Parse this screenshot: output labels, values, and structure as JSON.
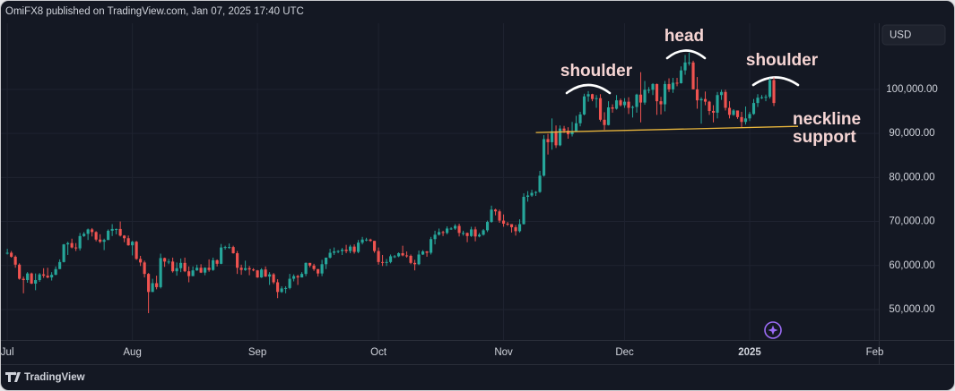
{
  "header": {
    "text": "OmiFX8 published on TradingView.com, Jan 07, 2025 17:40 UTC"
  },
  "footer": {
    "brand": "TradingView"
  },
  "currency_button": "USD",
  "chart_data": {
    "type": "candlestick",
    "up_color": "#26a69a",
    "down_color": "#ef5350",
    "grid": true,
    "xlim": [
      -0.7,
      216
    ],
    "xticks": [
      {
        "value": 0,
        "label": "Jul"
      },
      {
        "value": 31,
        "label": "Aug"
      },
      {
        "value": 62,
        "label": "Sep"
      },
      {
        "value": 92,
        "label": "Oct"
      },
      {
        "value": 123,
        "label": "Nov"
      },
      {
        "value": 153,
        "label": "Dec"
      },
      {
        "value": 184,
        "label": "2025",
        "bold": true
      },
      {
        "value": 215,
        "label": "Feb"
      }
    ],
    "ylim": [
      43100,
      115200
    ],
    "yticks": [
      {
        "value": 50000,
        "label": "50,000.00"
      },
      {
        "value": 60000,
        "label": "60,000.00"
      },
      {
        "value": 70000,
        "label": "70,000.00"
      },
      {
        "value": 80000,
        "label": "80,000.00"
      },
      {
        "value": 90000,
        "label": "90,000.00"
      },
      {
        "value": 100000,
        "label": "100,000.00"
      }
    ],
    "series": {
      "open": [
        62700,
        62900,
        62000,
        60200,
        57000,
        56700,
        58200,
        55900,
        56700,
        58000,
        57700,
        57300,
        57900,
        59200,
        60800,
        64800,
        65100,
        64100,
        63900,
        66700,
        67200,
        68200,
        67600,
        65900,
        65400,
        65800,
        67900,
        68300,
        68300,
        66800,
        66200,
        64600,
        65400,
        61500,
        60700,
        58100,
        54000,
        56000,
        55100,
        61700,
        60900,
        60900,
        58700,
        59400,
        60600,
        58700,
        57600,
        58900,
        59500,
        58400,
        59500,
        59000,
        61200,
        60400,
        64100,
        64200,
        64200,
        62800,
        59500,
        59000,
        59400,
        59100,
        58900,
        57300,
        59100,
        57500,
        58000,
        56200,
        54000,
        54800,
        54900,
        57000,
        57600,
        57300,
        58100,
        60600,
        60000,
        59200,
        58200,
        60300,
        61800,
        62900,
        63200,
        63300,
        63600,
        63300,
        64300,
        63100,
        65200,
        65900,
        65900,
        65600,
        63300,
        60800,
        60600,
        60800,
        62100,
        62100,
        62800,
        62300,
        62200,
        60600,
        60300,
        62500,
        63200,
        62900,
        66000,
        67000,
        67600,
        67400,
        68400,
        68400,
        69000,
        67400,
        67400,
        66700,
        68200,
        66600,
        67000,
        68000,
        69900,
        72700,
        72300,
        70200,
        69500,
        69400,
        68700,
        67800,
        69400,
        75600,
        75900,
        76500,
        76700,
        80400,
        88700,
        88000,
        90500,
        87300,
        91100,
        90600,
        89800,
        90500,
        92300,
        94300,
        98400,
        98900,
        97800,
        98000,
        93100,
        91900,
        95900,
        95600,
        97500,
        96400,
        97200,
        95800,
        96000,
        98800,
        97000,
        99900,
        99900,
        101200,
        97300,
        96600,
        101200,
        100000,
        101500,
        101400,
        104300,
        106100,
        106100,
        100000,
        97500,
        97800,
        97200,
        95100,
        94700,
        98700,
        99400,
        95800,
        94200,
        95200,
        93700,
        92600,
        93400,
        94400,
        96900,
        98100,
        98200,
        98300,
        102100
      ],
      "high": [
        63800,
        63300,
        62300,
        60500,
        57500,
        58500,
        58400,
        58200,
        58300,
        59400,
        59500,
        58500,
        59800,
        61400,
        64900,
        65400,
        66100,
        65100,
        67400,
        67600,
        68400,
        68500,
        67800,
        67100,
        66100,
        68200,
        69400,
        68400,
        70000,
        66900,
        66800,
        65600,
        65600,
        62200,
        61100,
        58300,
        57000,
        57700,
        62700,
        61800,
        61500,
        61800,
        60700,
        61600,
        61800,
        59800,
        59800,
        60200,
        60300,
        59600,
        61400,
        61800,
        61400,
        64900,
        64500,
        65000,
        64500,
        63300,
        60200,
        61100,
        59900,
        59400,
        59000,
        59400,
        59800,
        58500,
        58300,
        56900,
        55300,
        55300,
        58100,
        58000,
        57900,
        58500,
        60700,
        60600,
        60400,
        59200,
        61300,
        61800,
        63800,
        64100,
        63500,
        64000,
        64700,
        64700,
        64800,
        65800,
        66500,
        66300,
        66100,
        65600,
        64100,
        62400,
        61500,
        62500,
        62400,
        63000,
        64500,
        63200,
        62500,
        61300,
        63400,
        63500,
        63300,
        66500,
        67900,
        68400,
        67900,
        68900,
        68700,
        69400,
        69500,
        67900,
        67500,
        68800,
        68800,
        67400,
        68300,
        70200,
        73600,
        72900,
        72700,
        71600,
        69900,
        69400,
        69200,
        70500,
        76400,
        76900,
        77200,
        76900,
        81500,
        89600,
        89900,
        93400,
        91800,
        91800,
        91700,
        91400,
        92600,
        94000,
        94900,
        99000,
        99600,
        99000,
        98700,
        98900,
        94800,
        97300,
        96600,
        98700,
        97900,
        98000,
        98200,
        96300,
        99000,
        103900,
        101900,
        100500,
        101400,
        101300,
        98300,
        101900,
        102500,
        102600,
        102600,
        105200,
        107800,
        108300,
        106500,
        102800,
        98200,
        99500,
        97400,
        96400,
        99400,
        99900,
        99900,
        97300,
        95500,
        95200,
        94900,
        96100,
        94900,
        97800,
        98900,
        98700,
        98800,
        102500,
        102700
      ],
      "low": [
        62500,
        61800,
        59500,
        56800,
        53700,
        56100,
        55800,
        54400,
        56300,
        57200,
        57100,
        56600,
        57800,
        59200,
        60700,
        62400,
        63900,
        63300,
        63400,
        66500,
        65800,
        66600,
        65500,
        65100,
        63500,
        65800,
        66700,
        67100,
        66600,
        65300,
        64500,
        62300,
        61300,
        59900,
        57300,
        49200,
        54000,
        54600,
        54800,
        59700,
        60300,
        58400,
        57700,
        58500,
        58500,
        56200,
        57600,
        58800,
        58300,
        57800,
        58600,
        58800,
        59800,
        60300,
        63600,
        63800,
        62700,
        58100,
        57900,
        58800,
        57800,
        58700,
        57200,
        57200,
        57400,
        55600,
        55800,
        52600,
        53800,
        53700,
        54600,
        56400,
        55600,
        57300,
        57600,
        59600,
        58800,
        57500,
        57600,
        59200,
        61600,
        62400,
        62800,
        62400,
        62800,
        62800,
        62700,
        62800,
        64800,
        65500,
        65400,
        62900,
        60200,
        59900,
        59900,
        60500,
        61700,
        61900,
        62100,
        61800,
        60300,
        58900,
        60100,
        62400,
        62000,
        62500,
        64800,
        66800,
        66700,
        67100,
        68100,
        68100,
        66600,
        66800,
        65300,
        66500,
        65500,
        66400,
        66800,
        67600,
        69700,
        71400,
        69700,
        68800,
        69000,
        67500,
        66800,
        67500,
        69300,
        74500,
        75600,
        75800,
        76500,
        80200,
        85200,
        86300,
        86700,
        87100,
        90100,
        88800,
        89300,
        90400,
        91600,
        94100,
        97200,
        97300,
        95800,
        92700,
        90800,
        91800,
        94700,
        95400,
        96100,
        95800,
        94400,
        93600,
        94700,
        92500,
        96500,
        99100,
        98700,
        94200,
        94300,
        95000,
        99400,
        99200,
        100700,
        101300,
        103300,
        105400,
        100000,
        95600,
        92200,
        96400,
        94200,
        92500,
        93400,
        97600,
        95200,
        93400,
        94000,
        93300,
        91400,
        92000,
        92800,
        94200,
        96000,
        97800,
        97300,
        97900,
        96200
      ],
      "close": [
        62900,
        62000,
        60200,
        57000,
        56700,
        58200,
        55900,
        56700,
        58000,
        57700,
        57300,
        57900,
        59200,
        60800,
        64800,
        65100,
        64100,
        63900,
        66700,
        67200,
        68200,
        67600,
        65900,
        65400,
        65800,
        67900,
        68300,
        68300,
        66800,
        66200,
        64600,
        65400,
        61500,
        60700,
        58100,
        54000,
        56000,
        55100,
        61700,
        60900,
        60900,
        58700,
        59400,
        60600,
        58700,
        57600,
        58900,
        59500,
        58400,
        59500,
        59000,
        61200,
        60400,
        64100,
        64200,
        64200,
        62800,
        59500,
        59000,
        59400,
        59100,
        58900,
        57300,
        59100,
        57500,
        58000,
        56200,
        54000,
        54800,
        54900,
        57000,
        57600,
        57300,
        58100,
        60600,
        60000,
        59200,
        58200,
        60300,
        61800,
        62900,
        63200,
        63300,
        63600,
        63300,
        64300,
        63100,
        65200,
        65900,
        65900,
        65600,
        63300,
        60800,
        60600,
        60800,
        62100,
        62100,
        62800,
        62300,
        62200,
        60600,
        60300,
        62500,
        63200,
        62900,
        66000,
        67000,
        67600,
        67400,
        68400,
        68400,
        69000,
        67400,
        67400,
        66700,
        68200,
        66600,
        67000,
        68000,
        69900,
        72700,
        72300,
        70200,
        69500,
        69400,
        68700,
        67800,
        69400,
        75600,
        75900,
        76500,
        76700,
        80400,
        88700,
        88000,
        90500,
        87300,
        91100,
        90600,
        89800,
        90500,
        92300,
        94300,
        98400,
        98900,
        97800,
        98000,
        93100,
        91900,
        95900,
        95600,
        97500,
        96400,
        97200,
        95800,
        96000,
        98800,
        97000,
        99900,
        99900,
        101200,
        97300,
        96600,
        101200,
        100000,
        101500,
        101400,
        104300,
        106100,
        106100,
        100000,
        97500,
        97800,
        97200,
        95100,
        94700,
        98700,
        99400,
        95800,
        94200,
        95200,
        93700,
        92600,
        93400,
        94400,
        96900,
        98100,
        98200,
        98300,
        102100,
        96900
      ]
    },
    "neckline": {
      "color": "#e8b53c",
      "x": [
        131,
        196
      ],
      "y": [
        90200,
        91600
      ]
    },
    "annotations": [
      "shoulder",
      "head",
      "shoulder",
      "neckline",
      "support"
    ]
  }
}
